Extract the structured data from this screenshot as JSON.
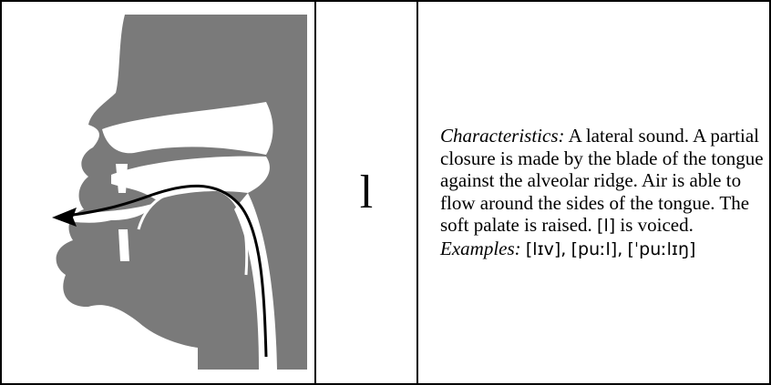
{
  "table": {
    "symbol": "l",
    "characteristics_label": "Characteristics:",
    "characteristics_text": "A lateral sound. A partial closure is made by the blade of the tongue against the alveolar ridge. Air is able to flow around the sides of the tongue. The soft palate is raised.",
    "characteristics_symbol": "[l]",
    "characteristics_end": "is voiced.",
    "examples_label": "Examples:",
    "examples": [
      "[lɪv],",
      "[puːl],",
      "[ˈpuːlɪŋ]"
    ]
  }
}
